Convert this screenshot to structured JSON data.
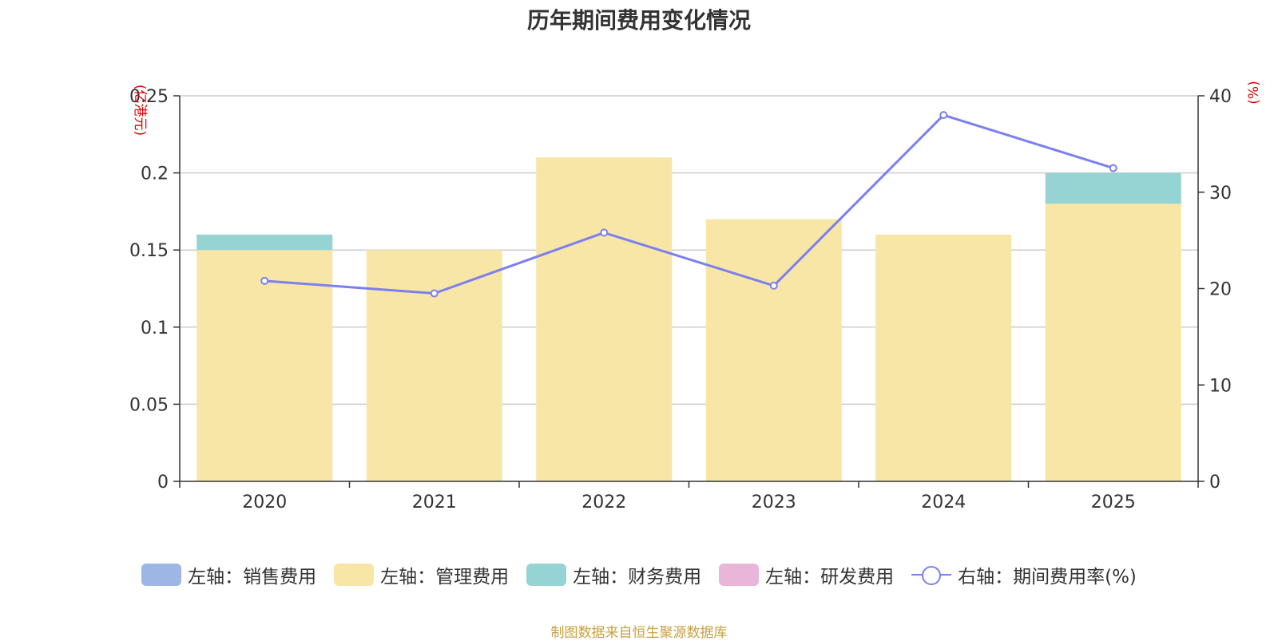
{
  "chart_data": {
    "type": "bar",
    "stacked": true,
    "title": "历年期间费用变化情况",
    "categories": [
      "2020",
      "2021",
      "2022",
      "2023",
      "2024",
      "2025"
    ],
    "left_axis": {
      "unit": "(亿港元)",
      "ylim": [
        0,
        0.25
      ],
      "ticks": [
        "0",
        "0.05",
        "0.1",
        "0.15",
        "0.2",
        "0.25"
      ],
      "tick_values": [
        0,
        0.05,
        0.1,
        0.15,
        0.2,
        0.25
      ]
    },
    "right_axis": {
      "unit": "(%)",
      "ylim": [
        0,
        40
      ],
      "ticks": [
        "0",
        "10",
        "20",
        "30",
        "40"
      ],
      "tick_values": [
        0,
        10,
        20,
        30,
        40
      ]
    },
    "series": [
      {
        "name": "左轴：销售费用",
        "kind": "bar",
        "axis": "left",
        "color": "#9db6e3",
        "values": [
          0,
          0,
          0,
          0,
          0,
          0
        ]
      },
      {
        "name": "左轴：管理费用",
        "kind": "bar",
        "axis": "left",
        "color": "#f7e6a6",
        "values": [
          0.15,
          0.15,
          0.21,
          0.17,
          0.16,
          0.18
        ]
      },
      {
        "name": "左轴：财务费用",
        "kind": "bar",
        "axis": "left",
        "color": "#96d4d4",
        "values": [
          0.01,
          0,
          0,
          0,
          0,
          0.02
        ]
      },
      {
        "name": "左轴：研发费用",
        "kind": "bar",
        "axis": "left",
        "color": "#e8b6d8",
        "values": [
          0,
          0,
          0,
          0,
          0,
          0
        ]
      },
      {
        "name": "右轴：期间费用率(%)",
        "kind": "line",
        "axis": "right",
        "color": "#7b7ff0",
        "values": [
          20.8,
          19.5,
          25.8,
          20.3,
          38,
          32.5
        ]
      }
    ]
  },
  "source_note": "制图数据来自恒生聚源数据库"
}
